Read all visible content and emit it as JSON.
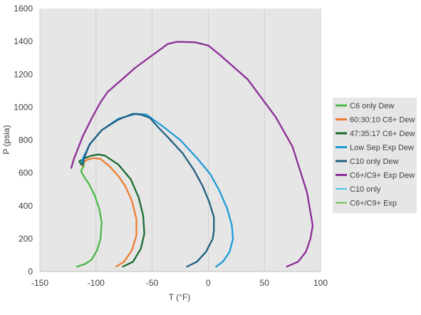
{
  "chart_data": {
    "type": "line",
    "title": "",
    "xlabel": "T (°F)",
    "ylabel": "P (psia)",
    "xlim": [
      -150,
      100
    ],
    "ylim": [
      0,
      1600
    ],
    "x_ticks": [
      -150,
      -100,
      -50,
      0,
      50,
      100
    ],
    "y_ticks": [
      0,
      200,
      400,
      600,
      800,
      1000,
      1200,
      1400,
      1600
    ],
    "grid": "vertical",
    "plot_background": "#e6e6e6",
    "legend_position": "right",
    "series": [
      {
        "name": "C6 only Dew",
        "color": "#4cb848",
        "width": 2,
        "points": [
          [
            -117,
            30
          ],
          [
            -110,
            45
          ],
          [
            -104,
            72
          ],
          [
            -99,
            130
          ],
          [
            -96,
            200
          ],
          [
            -95,
            300
          ],
          [
            -97,
            380
          ],
          [
            -101,
            460
          ],
          [
            -106,
            530
          ],
          [
            -110,
            570
          ],
          [
            -113,
            605
          ],
          [
            -113,
            620
          ],
          [
            -111,
            640
          ],
          [
            -111,
            670
          ]
        ]
      },
      {
        "name": "60:30:10 C6+ Dew",
        "color": "#ee7d31",
        "width": 2,
        "points": [
          [
            -82,
            30
          ],
          [
            -75,
            60
          ],
          [
            -68,
            130
          ],
          [
            -64,
            220
          ],
          [
            -64,
            320
          ],
          [
            -68,
            430
          ],
          [
            -74,
            520
          ],
          [
            -80,
            580
          ],
          [
            -88,
            640
          ],
          [
            -96,
            685
          ],
          [
            -102,
            690
          ],
          [
            -108,
            680
          ],
          [
            -112,
            660
          ],
          [
            -112,
            640
          ]
        ]
      },
      {
        "name": "47:35:17 C6+ Dew",
        "color": "#1a6b2f",
        "width": 2,
        "points": [
          [
            -76,
            30
          ],
          [
            -67,
            60
          ],
          [
            -60,
            140
          ],
          [
            -57,
            230
          ],
          [
            -58,
            340
          ],
          [
            -62,
            450
          ],
          [
            -69,
            560
          ],
          [
            -80,
            650
          ],
          [
            -92,
            705
          ],
          [
            -98,
            712
          ],
          [
            -104,
            705
          ],
          [
            -110,
            690
          ],
          [
            -115,
            670
          ],
          [
            -113,
            650
          ]
        ]
      },
      {
        "name": "Low Sep Exp Dew",
        "color": "#1e9cd7",
        "width": 2,
        "points": [
          [
            7,
            30
          ],
          [
            13,
            60
          ],
          [
            19,
            120
          ],
          [
            22,
            200
          ],
          [
            21,
            280
          ],
          [
            17,
            380
          ],
          [
            10,
            490
          ],
          [
            2,
            590
          ],
          [
            -10,
            690
          ],
          [
            -25,
            800
          ],
          [
            -40,
            880
          ],
          [
            -50,
            930
          ],
          [
            -55,
            955
          ],
          [
            -64,
            960
          ],
          [
            -80,
            930
          ],
          [
            -95,
            860
          ],
          [
            -105,
            780
          ],
          [
            -111,
            700
          ],
          [
            -113,
            665
          ]
        ]
      },
      {
        "name": "C10 only Dew",
        "color": "#1f5f80",
        "width": 2,
        "points": [
          [
            -19,
            30
          ],
          [
            -10,
            60
          ],
          [
            -2,
            120
          ],
          [
            4,
            200
          ],
          [
            5,
            250
          ],
          [
            5,
            330
          ],
          [
            1,
            420
          ],
          [
            -5,
            520
          ],
          [
            -13,
            620
          ],
          [
            -23,
            720
          ],
          [
            -35,
            810
          ],
          [
            -45,
            880
          ],
          [
            -52,
            935
          ],
          [
            -60,
            955
          ],
          [
            -67,
            960
          ],
          [
            -80,
            925
          ],
          [
            -95,
            860
          ],
          [
            -106,
            770
          ],
          [
            -110,
            700
          ],
          [
            -112,
            650
          ],
          [
            -111,
            670
          ]
        ]
      },
      {
        "name": "C6+/C9+ Exp Dew",
        "color": "#8b2d96",
        "width": 2,
        "points": [
          [
            70,
            30
          ],
          [
            80,
            60
          ],
          [
            87,
            120
          ],
          [
            91,
            200
          ],
          [
            93,
            280
          ],
          [
            88,
            480
          ],
          [
            75,
            760
          ],
          [
            60,
            940
          ],
          [
            35,
            1170
          ],
          [
            10,
            1320
          ],
          [
            0,
            1375
          ],
          [
            -12,
            1395
          ],
          [
            -28,
            1398
          ],
          [
            -36,
            1385
          ],
          [
            -50,
            1315
          ],
          [
            -65,
            1240
          ],
          [
            -80,
            1150
          ],
          [
            -90,
            1090
          ],
          [
            -96,
            1030
          ],
          [
            -104,
            930
          ],
          [
            -112,
            820
          ],
          [
            -120,
            680
          ],
          [
            -122,
            630
          ]
        ]
      },
      {
        "name": "C10 only",
        "color": "#4bc3ee",
        "width": 1,
        "points": []
      },
      {
        "name": "C6+/C9+ Exp",
        "color": "#6cc24a",
        "width": 1,
        "points": []
      }
    ]
  }
}
